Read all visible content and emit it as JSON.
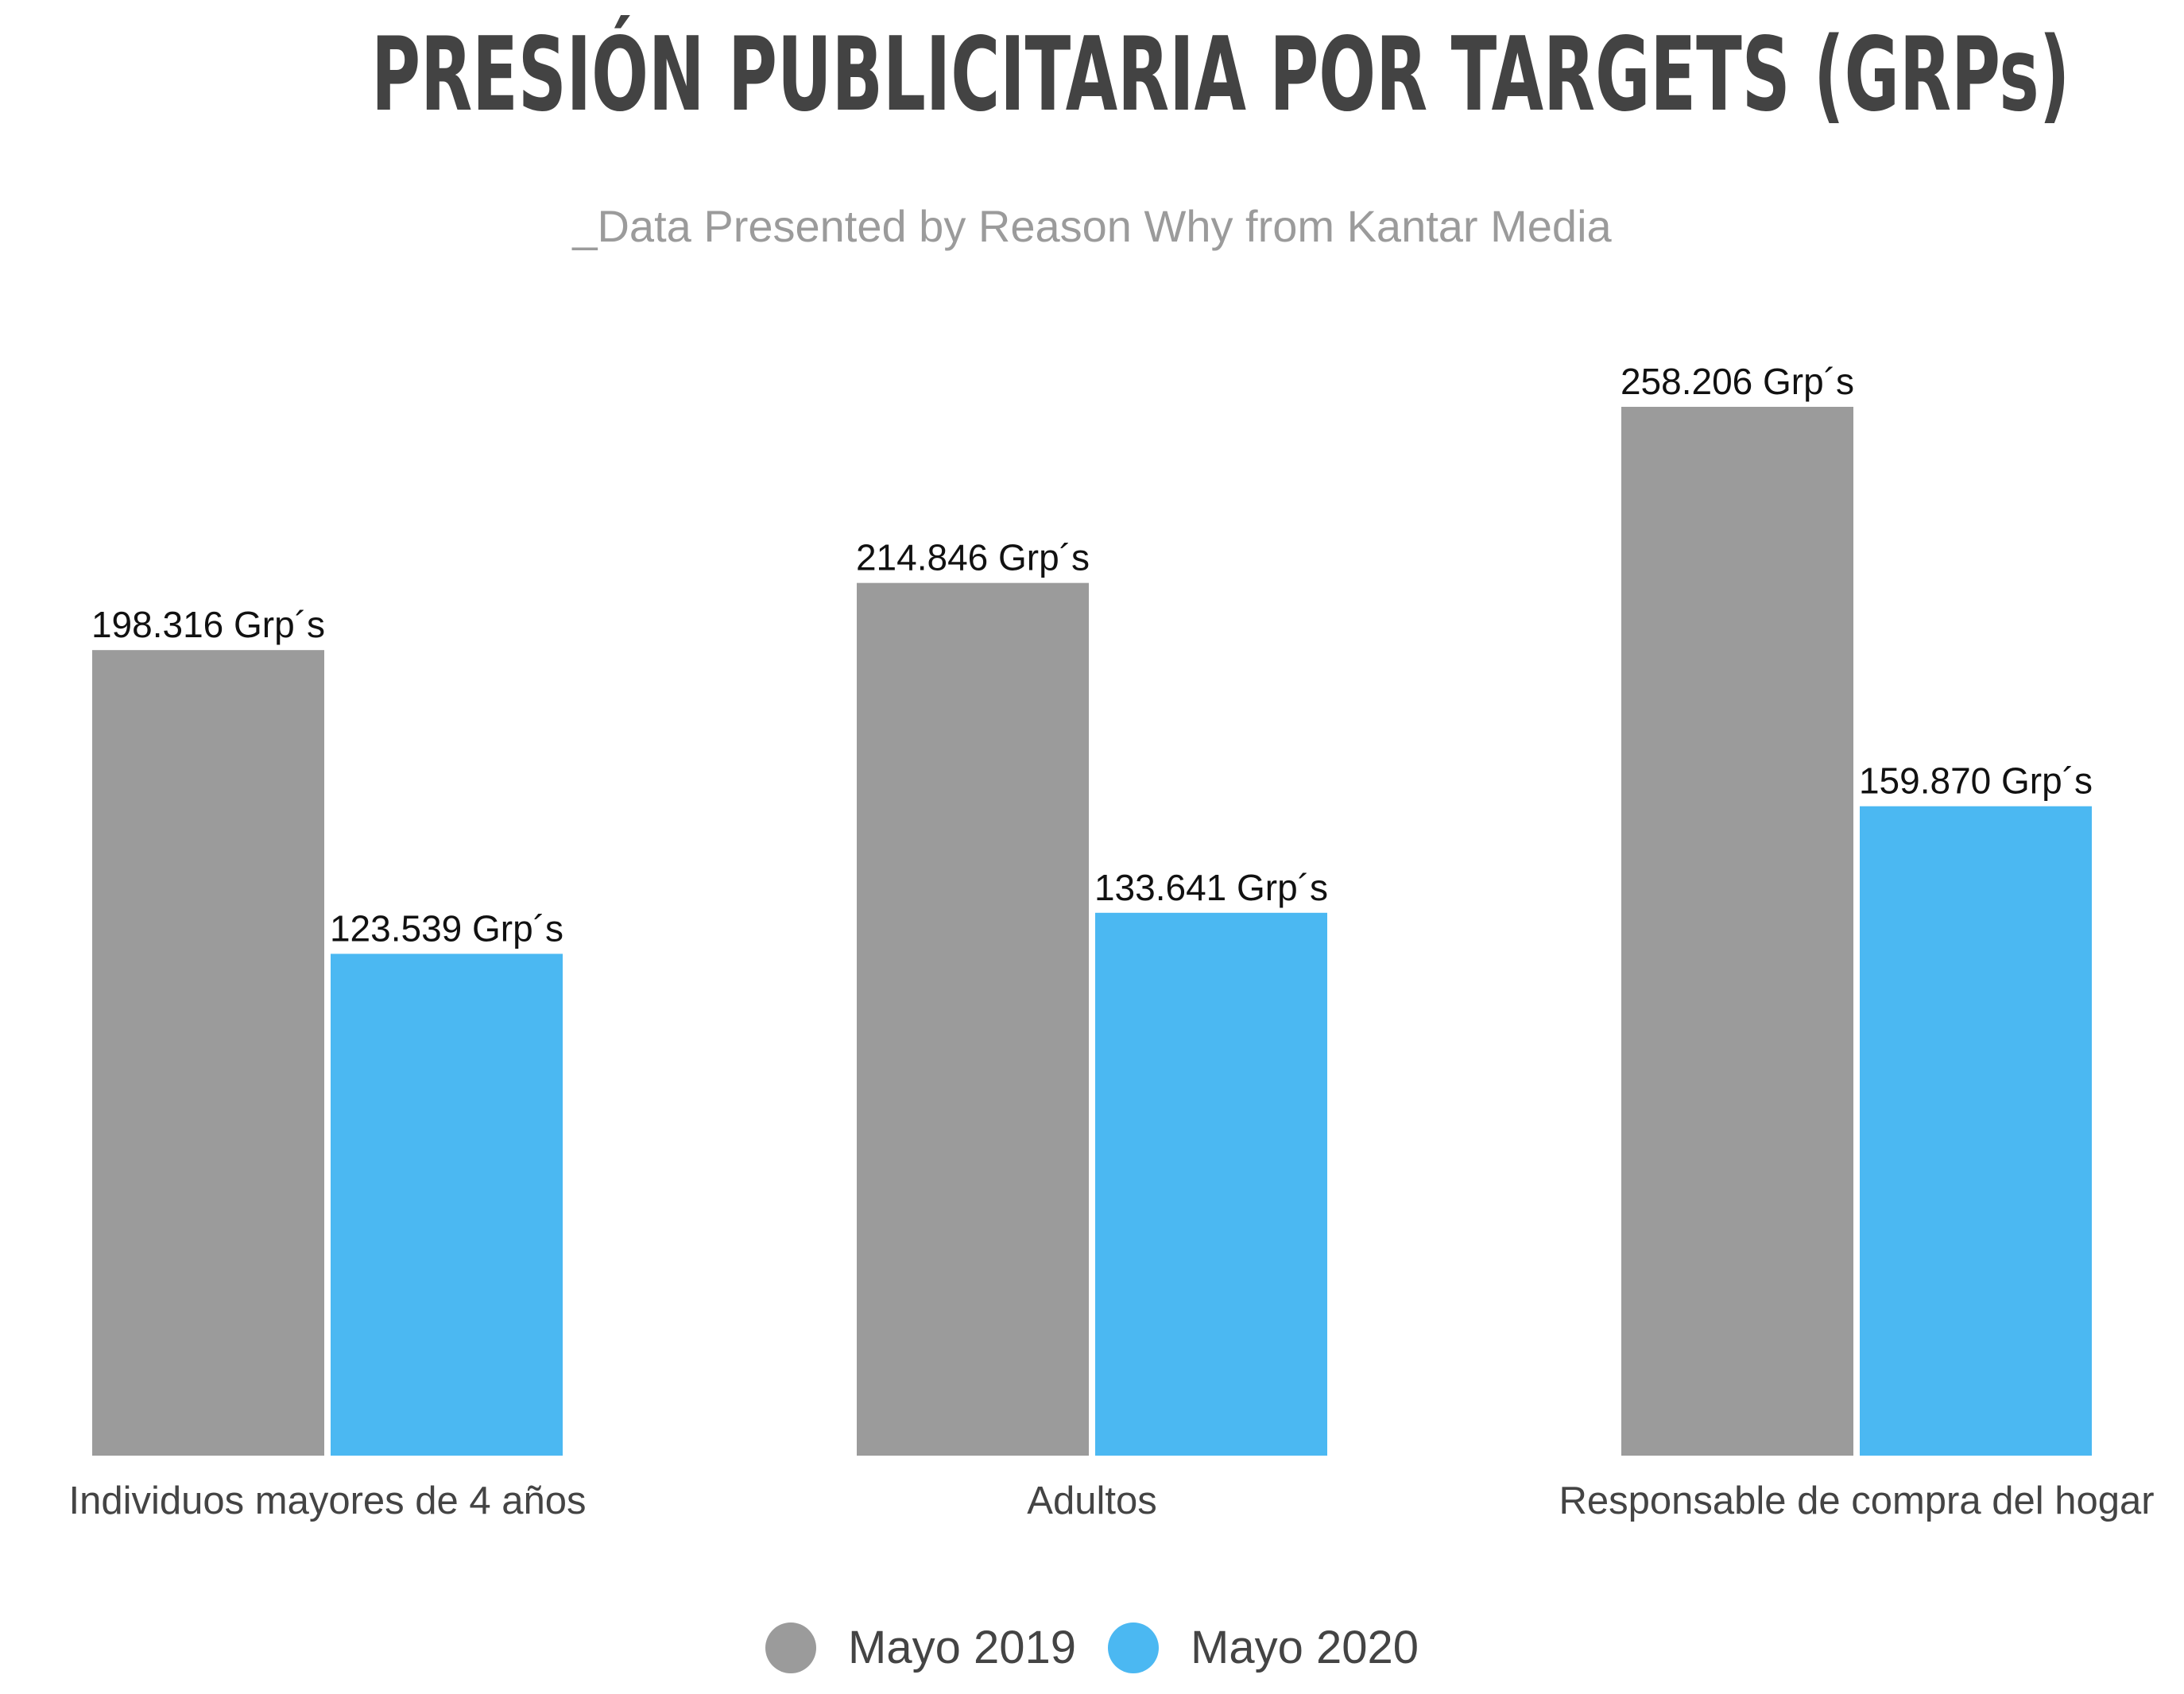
{
  "chart_data": {
    "type": "bar",
    "title": "PRESIÓN PUBLICITARIA POR TARGETS (GRPs)",
    "subtitle": "_Data Presented by Reason Why from Kantar Media",
    "categories": [
      "Individuos mayores de 4 años",
      "Adultos",
      "Responsable de compra del hogar"
    ],
    "series": [
      {
        "name": "Mayo 2019",
        "color": "#9b9b9b",
        "values": [
          198.316,
          214.846,
          258.206
        ],
        "labels": [
          "198.316 Grp´s",
          "214.846 Grp´s",
          "258.206 Grp´s"
        ]
      },
      {
        "name": "Mayo 2020",
        "color": "#4bb8f2",
        "values": [
          123.539,
          133.641,
          159.87
        ],
        "labels": [
          "123.539 Grp´s",
          "133.641 Grp´s",
          "159.870 Grp´s"
        ]
      }
    ],
    "ylim": [
      0,
      258.206
    ],
    "grid": false,
    "legend_position": "bottom-center"
  }
}
